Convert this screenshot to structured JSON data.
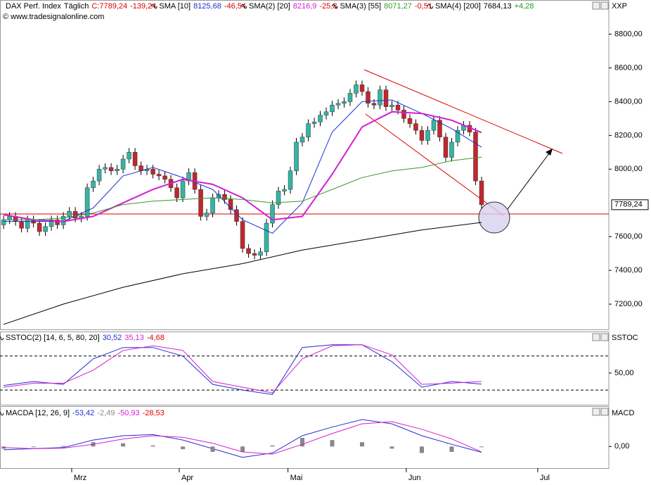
{
  "chart_data": [
    {
      "type": "candlestick",
      "title": "DAX Perf. Index",
      "interval": "Täglich",
      "close_label": "C:7789,24",
      "change_label": "-139,24",
      "source": "© www.tradesignalonline.com",
      "axis_title": "XXP",
      "last_label": "7789,24",
      "up_color": "#35b5a4",
      "down_color": "#c1272d",
      "xlim": [
        -0.6,
        101.3
      ],
      "xticks": [
        {
          "value": 11.4,
          "label": "Mrz"
        },
        {
          "value": 29.4,
          "label": "Apr"
        },
        {
          "value": 47.6,
          "label": "Mai"
        },
        {
          "value": 67.4,
          "label": "Jun"
        },
        {
          "value": 89.4,
          "label": "Jul"
        }
      ],
      "ylim": [
        7050,
        8940
      ],
      "yticks": [
        {
          "value": 8800,
          "label": "8800,00"
        },
        {
          "value": 8600,
          "label": "8600,00"
        },
        {
          "value": 8400,
          "label": "8400,00"
        },
        {
          "value": 8200,
          "label": "8200,00"
        },
        {
          "value": 8000,
          "label": "8000,00"
        },
        {
          "value": 7600,
          "label": "7600,00"
        },
        {
          "value": 7400,
          "label": "7400,00"
        },
        {
          "value": 7200,
          "label": "7200,00"
        }
      ],
      "open": [
        7670,
        7700,
        7720,
        7690,
        7650,
        7700,
        7680,
        7630,
        7660,
        7700,
        7670,
        7720,
        7750,
        7710,
        7720,
        7890,
        7930,
        8000,
        8010,
        7990,
        8000,
        8060,
        8100,
        8020,
        7990,
        8000,
        7970,
        7960,
        7940,
        7890,
        7830,
        7930,
        7980,
        7880,
        7720,
        7740,
        7830,
        7850,
        7820,
        7760,
        7690,
        7530,
        7500,
        7490,
        7510,
        7680,
        7790,
        7870,
        7880,
        7990,
        8160,
        8190,
        8270,
        8280,
        8320,
        8340,
        8380,
        8390,
        8400,
        8450,
        8500,
        8460,
        8390,
        8380,
        8470,
        8370,
        8380,
        8350,
        8300,
        8270,
        8230,
        8170,
        8230,
        8290,
        8190,
        8070,
        8160,
        8230,
        8260,
        8220,
        7930
      ],
      "high": [
        7725,
        7745,
        7745,
        7715,
        7725,
        7725,
        7705,
        7685,
        7725,
        7725,
        7745,
        7775,
        7775,
        7745,
        7915,
        7955,
        8025,
        8035,
        8035,
        8025,
        8085,
        8125,
        8125,
        8045,
        8025,
        8025,
        7995,
        7985,
        7965,
        7915,
        7955,
        8005,
        8005,
        7905,
        7765,
        7855,
        7875,
        7875,
        7845,
        7785,
        7715,
        7555,
        7525,
        7535,
        7705,
        7815,
        7895,
        7905,
        8015,
        8185,
        8215,
        8295,
        8305,
        8345,
        8365,
        8405,
        8415,
        8425,
        8475,
        8525,
        8525,
        8485,
        8415,
        8495,
        8495,
        8405,
        8405,
        8375,
        8325,
        8295,
        8255,
        8255,
        8315,
        8315,
        8215,
        8185,
        8255,
        8285,
        8285,
        8245,
        7955
      ],
      "low": [
        7645,
        7675,
        7665,
        7625,
        7625,
        7655,
        7605,
        7605,
        7635,
        7645,
        7645,
        7695,
        7685,
        7685,
        7695,
        7865,
        7905,
        7975,
        7965,
        7965,
        7975,
        8035,
        7995,
        7965,
        7965,
        7945,
        7935,
        7915,
        7865,
        7805,
        7805,
        7905,
        7855,
        7695,
        7695,
        7715,
        7805,
        7795,
        7735,
        7665,
        7505,
        7475,
        7465,
        7465,
        7485,
        7655,
        7765,
        7845,
        7855,
        7965,
        8135,
        8165,
        8245,
        8255,
        8295,
        8315,
        8355,
        8365,
        8375,
        8425,
        8435,
        8365,
        8355,
        8355,
        8345,
        8345,
        8325,
        8275,
        8245,
        8205,
        8145,
        8145,
        8205,
        8165,
        8045,
        8045,
        8135,
        8205,
        8195,
        7905,
        7765
      ],
      "close": [
        7700,
        7720,
        7690,
        7650,
        7700,
        7680,
        7630,
        7660,
        7700,
        7670,
        7720,
        7750,
        7710,
        7720,
        7890,
        7930,
        8000,
        8010,
        7990,
        8000,
        8060,
        8100,
        8020,
        7990,
        8000,
        7970,
        7960,
        7940,
        7890,
        7830,
        7930,
        7980,
        7880,
        7720,
        7740,
        7830,
        7850,
        7820,
        7760,
        7690,
        7530,
        7500,
        7490,
        7510,
        7680,
        7790,
        7870,
        7880,
        7990,
        8160,
        8190,
        8270,
        8280,
        8320,
        8340,
        8380,
        8390,
        8400,
        8450,
        8500,
        8460,
        8390,
        8380,
        8470,
        8370,
        8380,
        8350,
        8300,
        8270,
        8230,
        8170,
        8230,
        8290,
        8190,
        8070,
        8160,
        8230,
        8260,
        8220,
        7930,
        7789.24
      ],
      "series": [
        {
          "name": "SMA [10]",
          "last_label": "8125,68",
          "change_label": "-46,54",
          "color": "#1f2fd0",
          "x": [
            0,
            5,
            10,
            15,
            20,
            25,
            30,
            35,
            40,
            45,
            50,
            55,
            60,
            65,
            70,
            75,
            80
          ],
          "values": [
            7690,
            7690,
            7690,
            7770,
            7960,
            8010,
            7950,
            7880,
            7700,
            7620,
            7800,
            8220,
            8400,
            8410,
            8330,
            8240,
            8130
          ]
        },
        {
          "name": "SMA(2) [20]",
          "last_label": "8216,9",
          "change_label": "-25,8",
          "color": "#d21fd2",
          "x": [
            0,
            5,
            10,
            15,
            20,
            25,
            30,
            35,
            40,
            45,
            50,
            55,
            60,
            65,
            70,
            75,
            80
          ],
          "values": [
            7730,
            7700,
            7690,
            7720,
            7800,
            7880,
            7940,
            7910,
            7830,
            7700,
            7720,
            7970,
            8250,
            8340,
            8330,
            8290,
            8217
          ]
        },
        {
          "name": "SMA(3) [55]",
          "last_label": "8071,27",
          "change_label": "-0,51",
          "color": "#3a9a2a",
          "x": [
            0,
            5,
            10,
            15,
            20,
            25,
            30,
            35,
            40,
            45,
            50,
            55,
            60,
            65,
            70,
            75,
            80
          ],
          "values": [
            7700,
            7700,
            7710,
            7740,
            7790,
            7810,
            7820,
            7830,
            7820,
            7800,
            7810,
            7880,
            7950,
            7990,
            8010,
            8050,
            8071
          ]
        },
        {
          "name": "SMA(4) [200]",
          "last_label": "7684,13",
          "change_label": "+4,28",
          "color": "#000000",
          "x": [
            0,
            10,
            20,
            30,
            40,
            50,
            60,
            70,
            80
          ],
          "values": [
            7080,
            7200,
            7300,
            7380,
            7440,
            7520,
            7580,
            7640,
            7684
          ]
        }
      ]
    },
    {
      "type": "line",
      "title": "SSTOC(2) [14, 6, 5, 80, 20]",
      "change_label": "-4,68",
      "axis_title": "SSTOC",
      "ylim": [
        -6,
        122
      ],
      "yticks": [
        {
          "value": 50,
          "label": "50,00"
        }
      ],
      "levels": [
        80,
        20
      ],
      "series": [
        {
          "last_label": "30,52",
          "color": "#1f2fd0",
          "x": [
            0,
            5,
            10,
            15,
            20,
            25,
            30,
            35,
            40,
            45,
            50,
            55,
            60,
            65,
            70,
            75,
            80
          ],
          "values": [
            28,
            35,
            30,
            75,
            95,
            95,
            80,
            30,
            20,
            12,
            95,
            100,
            100,
            70,
            25,
            35,
            30.52
          ]
        },
        {
          "last_label": "35,13",
          "color": "#d21fd2",
          "x": [
            0,
            5,
            10,
            15,
            20,
            25,
            30,
            35,
            40,
            45,
            50,
            55,
            60,
            65,
            70,
            75,
            80
          ],
          "values": [
            25,
            32,
            32,
            55,
            90,
            98,
            90,
            35,
            25,
            15,
            75,
            98,
            100,
            82,
            30,
            32,
            35.13
          ]
        }
      ]
    },
    {
      "type": "combo",
      "title": "MACDA [12, 26, 9]",
      "axis_title": "MACD",
      "ylim": [
        -200,
        367
      ],
      "yticks": [
        {
          "value": 0,
          "label": "0,00"
        }
      ],
      "series": [
        {
          "last_label": "-53,42",
          "color": "#1f2fd0",
          "x": [
            0,
            5,
            10,
            15,
            20,
            25,
            30,
            35,
            40,
            45,
            50,
            55,
            60,
            65,
            70,
            75,
            80
          ],
          "values": [
            -30,
            -20,
            -10,
            60,
            100,
            110,
            60,
            -20,
            -100,
            -60,
            100,
            180,
            250,
            210,
            100,
            20,
            -53.42
          ]
        },
        {
          "last_label": "-2,49",
          "color": "#888888",
          "kind": "bar",
          "x": [
            0,
            5,
            10,
            15,
            20,
            25,
            30,
            35,
            40,
            45,
            50,
            55,
            60,
            65,
            70,
            75,
            80
          ],
          "values": [
            -20,
            0,
            5,
            40,
            30,
            10,
            -25,
            -50,
            -50,
            10,
            80,
            60,
            40,
            -20,
            -60,
            -50,
            -2.49
          ]
        },
        {
          "last_label": "-50,93",
          "color": "#d21fd2",
          "x": [
            0,
            5,
            10,
            15,
            20,
            25,
            30,
            35,
            40,
            45,
            50,
            55,
            60,
            65,
            70,
            75,
            80
          ],
          "values": [
            -10,
            -20,
            -15,
            20,
            70,
            100,
            85,
            30,
            -50,
            -70,
            20,
            120,
            210,
            230,
            160,
            70,
            -50.93
          ]
        }
      ],
      "change_label": "-28,53"
    }
  ]
}
